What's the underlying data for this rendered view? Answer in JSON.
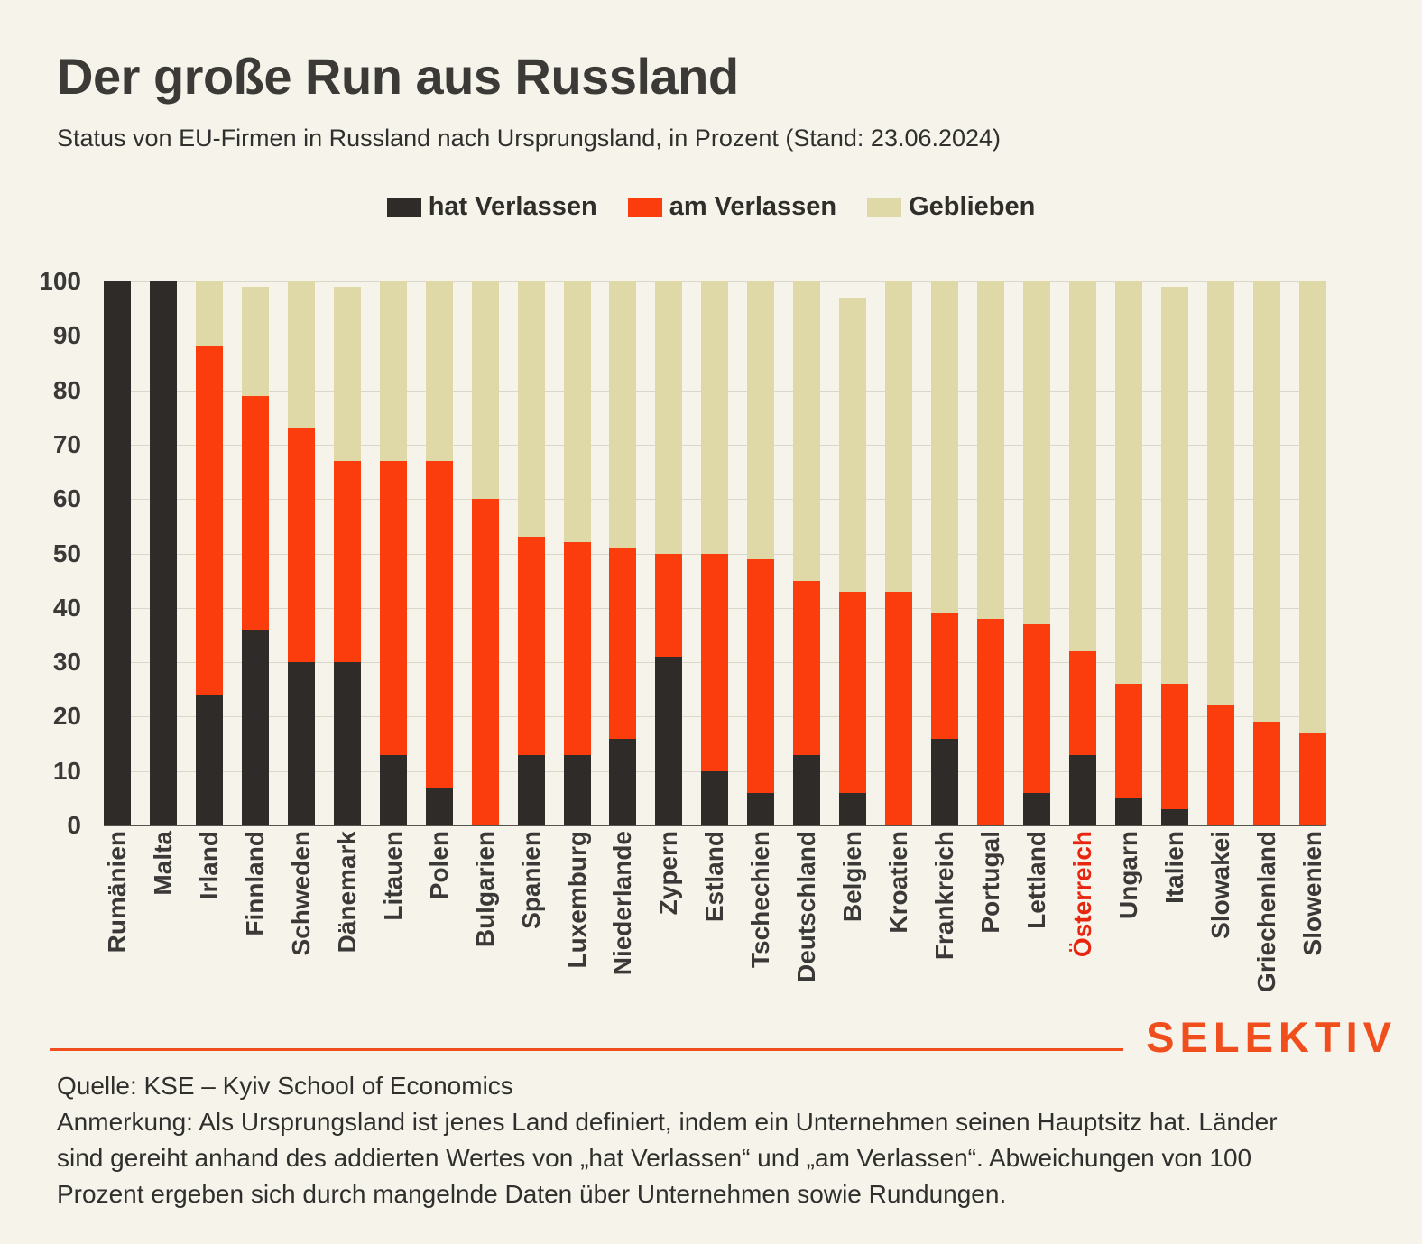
{
  "title": "Der große Run aus Russland",
  "subtitle": "Status von EU-Firmen in Russland nach Ursprungsland, in Prozent (Stand: 23.06.2024)",
  "legend": [
    {
      "label": "hat Verlassen",
      "color": "#2e2b28"
    },
    {
      "label": "am Verlassen",
      "color": "#fb3d0d"
    },
    {
      "label": "Geblieben",
      "color": "#ded9a7"
    }
  ],
  "chart_data": {
    "type": "bar",
    "stacked": true,
    "unit": "percent",
    "title": "Der große Run aus Russland",
    "subtitle": "Status von EU-Firmen in Russland nach Ursprungsland, in Prozent (Stand: 23.06.2024)",
    "ylim": [
      0,
      100
    ],
    "ytick_step": 10,
    "grid": true,
    "legend_position": "top",
    "categories": [
      "Rumänien",
      "Malta",
      "Irland",
      "Finnland",
      "Schweden",
      "Dänemark",
      "Litauen",
      "Polen",
      "Bulgarien",
      "Spanien",
      "Luxemburg",
      "Niederlande",
      "Zypern",
      "Estland",
      "Tschechien",
      "Deutschland",
      "Belgien",
      "Kroatien",
      "Frankreich",
      "Portugal",
      "Lettland",
      "Österreich",
      "Ungarn",
      "Italien",
      "Slowakei",
      "Griechenland",
      "Slowenien"
    ],
    "highlighted_category": "Österreich",
    "highlight_color": "#e8250e",
    "series": [
      {
        "name": "hat Verlassen",
        "color": "#2e2b28",
        "values": [
          100,
          100,
          24,
          36,
          30,
          30,
          13,
          7,
          0,
          13,
          13,
          16,
          31,
          10,
          6,
          13,
          6,
          0,
          16,
          0,
          6,
          13,
          5,
          3,
          0,
          0,
          0
        ]
      },
      {
        "name": "am Verlassen",
        "color": "#fb3d0d",
        "values": [
          0,
          0,
          64,
          43,
          43,
          37,
          54,
          60,
          60,
          40,
          39,
          35,
          19,
          40,
          43,
          32,
          37,
          43,
          23,
          38,
          31,
          19,
          21,
          23,
          22,
          19,
          17
        ]
      },
      {
        "name": "Geblieben",
        "color": "#ded9a7",
        "values": [
          0,
          0,
          12,
          20,
          27,
          32,
          33,
          33,
          40,
          47,
          48,
          49,
          50,
          50,
          51,
          55,
          54,
          57,
          61,
          62,
          63,
          68,
          74,
          73,
          78,
          81,
          83
        ]
      }
    ]
  },
  "footer": {
    "source": "Quelle: KSE – Kyiv School of Economics",
    "note_lines": [
      "Anmerkung: Als Ursprungsland ist jenes Land definiert, indem ein Unternehmen seinen Hauptsitz hat. Länder",
      "sind gereiht anhand des addierten Wertes von „hat Verlassen“ und „am Verlassen“. Abweichungen von 100",
      "Prozent ergeben sich durch mangelnde Daten über Unternehmen sowie Rundungen."
    ],
    "logo": "SELEKTIV"
  },
  "colors": {
    "background": "#f6f4ea",
    "gridline": "#d9d6ca",
    "axis_line": "#55534e",
    "text": "#33322f",
    "logo": "#f04e1d"
  }
}
